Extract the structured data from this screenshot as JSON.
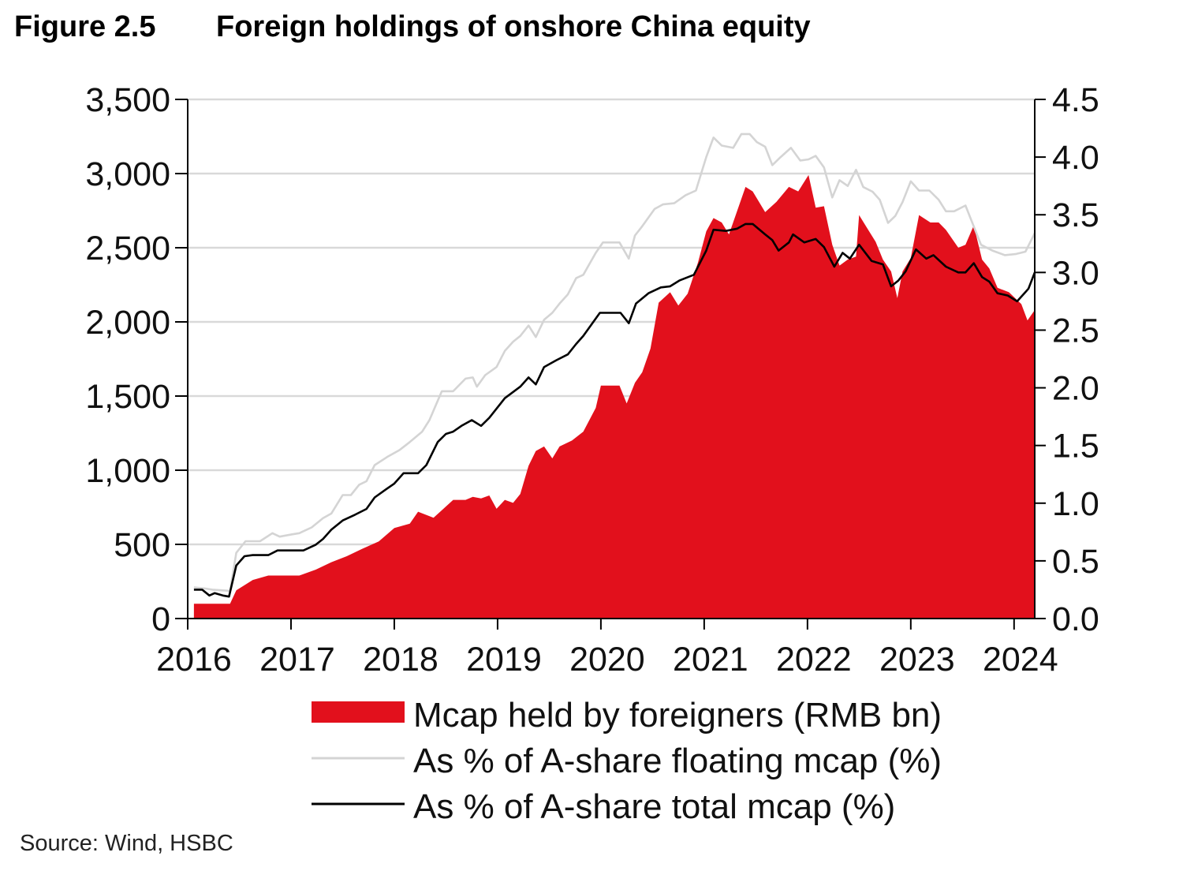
{
  "title": {
    "figure": "Figure 2.5",
    "text": "Foreign holdings of onshore China equity"
  },
  "source": "Source: Wind, HSBC",
  "chart_data": {
    "type": "area+line",
    "title": "Foreign holdings of onshore China equity",
    "xlim": [
      2016,
      2024.2
    ],
    "x_ticks": [
      "2016",
      "2017",
      "2018",
      "2019",
      "2020",
      "2021",
      "2022",
      "2023",
      "2024"
    ],
    "y_left": {
      "lim": [
        0,
        3500
      ],
      "ticks": [
        "0",
        "500",
        "1,000",
        "1,500",
        "2,000",
        "2,500",
        "3,000",
        "3,500"
      ],
      "tick_values": [
        0,
        500,
        1000,
        1500,
        2000,
        2500,
        3000,
        3500
      ]
    },
    "y_right": {
      "lim": [
        0,
        4.5
      ],
      "ticks": [
        "0.0",
        "0.5",
        "1.0",
        "1.5",
        "2.0",
        "2.5",
        "3.0",
        "3.5",
        "4.0",
        "4.5"
      ],
      "tick_values": [
        0,
        0.5,
        1,
        1.5,
        2,
        2.5,
        3,
        3.5,
        4,
        4.5
      ]
    },
    "grid": "horizontal",
    "legend_position": "bottom",
    "colors": {
      "mcap": "#e2101c",
      "floating": "#d4d4d4",
      "total": "#000000",
      "grid": "#d9d9d9"
    },
    "series": [
      {
        "name": "Mcap held by foreigners (RMB bn)",
        "axis": "left",
        "kind": "area",
        "points": [
          [
            2016.06,
            100
          ],
          [
            2016.41,
            100
          ],
          [
            2016.47,
            190
          ],
          [
            2016.63,
            260
          ],
          [
            2016.78,
            290
          ],
          [
            2017.08,
            290
          ],
          [
            2017.24,
            330
          ],
          [
            2017.39,
            380
          ],
          [
            2017.54,
            420
          ],
          [
            2017.69,
            470
          ],
          [
            2017.85,
            520
          ],
          [
            2018.0,
            610
          ],
          [
            2018.15,
            640
          ],
          [
            2018.23,
            720
          ],
          [
            2018.38,
            680
          ],
          [
            2018.46,
            730
          ],
          [
            2018.57,
            800
          ],
          [
            2018.69,
            800
          ],
          [
            2018.76,
            820
          ],
          [
            2018.84,
            810
          ],
          [
            2018.92,
            830
          ],
          [
            2018.99,
            740
          ],
          [
            2019.07,
            800
          ],
          [
            2019.15,
            780
          ],
          [
            2019.22,
            840
          ],
          [
            2019.3,
            1030
          ],
          [
            2019.37,
            1130
          ],
          [
            2019.45,
            1160
          ],
          [
            2019.53,
            1080
          ],
          [
            2019.6,
            1160
          ],
          [
            2019.72,
            1200
          ],
          [
            2019.83,
            1260
          ],
          [
            2019.95,
            1420
          ],
          [
            2020.0,
            1570
          ],
          [
            2020.18,
            1570
          ],
          [
            2020.25,
            1450
          ],
          [
            2020.33,
            1590
          ],
          [
            2020.4,
            1660
          ],
          [
            2020.48,
            1820
          ],
          [
            2020.56,
            2130
          ],
          [
            2020.67,
            2200
          ],
          [
            2020.75,
            2110
          ],
          [
            2020.84,
            2190
          ],
          [
            2020.94,
            2400
          ],
          [
            2021.02,
            2610
          ],
          [
            2021.09,
            2700
          ],
          [
            2021.17,
            2670
          ],
          [
            2021.24,
            2590
          ],
          [
            2021.32,
            2750
          ],
          [
            2021.4,
            2910
          ],
          [
            2021.47,
            2880
          ],
          [
            2021.59,
            2740
          ],
          [
            2021.7,
            2810
          ],
          [
            2021.82,
            2910
          ],
          [
            2021.91,
            2880
          ],
          [
            2022.01,
            2990
          ],
          [
            2022.08,
            2770
          ],
          [
            2022.16,
            2780
          ],
          [
            2022.24,
            2520
          ],
          [
            2022.31,
            2380
          ],
          [
            2022.39,
            2420
          ],
          [
            2022.47,
            2440
          ],
          [
            2022.5,
            2720
          ],
          [
            2022.58,
            2630
          ],
          [
            2022.66,
            2540
          ],
          [
            2022.73,
            2420
          ],
          [
            2022.81,
            2340
          ],
          [
            2022.87,
            2160
          ],
          [
            2022.92,
            2340
          ],
          [
            2023.0,
            2430
          ],
          [
            2023.08,
            2720
          ],
          [
            2023.19,
            2670
          ],
          [
            2023.27,
            2670
          ],
          [
            2023.34,
            2620
          ],
          [
            2023.46,
            2500
          ],
          [
            2023.53,
            2520
          ],
          [
            2023.61,
            2650
          ],
          [
            2023.69,
            2420
          ],
          [
            2023.76,
            2360
          ],
          [
            2023.84,
            2230
          ],
          [
            2023.95,
            2200
          ],
          [
            2024.07,
            2120
          ],
          [
            2024.13,
            2010
          ],
          [
            2024.2,
            2080
          ]
        ]
      },
      {
        "name": "As % of A-share floating mcap (%)",
        "axis": "right",
        "kind": "line",
        "points": [
          [
            2016.06,
            0.27
          ],
          [
            2016.17,
            0.26
          ],
          [
            2016.24,
            0.25
          ],
          [
            2016.41,
            0.24
          ],
          [
            2016.47,
            0.57
          ],
          [
            2016.56,
            0.67
          ],
          [
            2016.7,
            0.67
          ],
          [
            2016.82,
            0.74
          ],
          [
            2016.89,
            0.71
          ],
          [
            2017.01,
            0.73
          ],
          [
            2017.08,
            0.74
          ],
          [
            2017.2,
            0.79
          ],
          [
            2017.31,
            0.87
          ],
          [
            2017.39,
            0.91
          ],
          [
            2017.5,
            1.07
          ],
          [
            2017.58,
            1.07
          ],
          [
            2017.66,
            1.16
          ],
          [
            2017.73,
            1.19
          ],
          [
            2017.81,
            1.33
          ],
          [
            2017.93,
            1.4
          ],
          [
            2018.05,
            1.46
          ],
          [
            2018.15,
            1.53
          ],
          [
            2018.27,
            1.62
          ],
          [
            2018.34,
            1.72
          ],
          [
            2018.46,
            1.97
          ],
          [
            2018.57,
            1.97
          ],
          [
            2018.69,
            2.08
          ],
          [
            2018.76,
            2.09
          ],
          [
            2018.8,
            2.01
          ],
          [
            2018.88,
            2.11
          ],
          [
            2018.99,
            2.18
          ],
          [
            2019.07,
            2.32
          ],
          [
            2019.15,
            2.4
          ],
          [
            2019.22,
            2.45
          ],
          [
            2019.3,
            2.54
          ],
          [
            2019.37,
            2.44
          ],
          [
            2019.45,
            2.59
          ],
          [
            2019.53,
            2.65
          ],
          [
            2019.6,
            2.73
          ],
          [
            2019.68,
            2.81
          ],
          [
            2019.76,
            2.95
          ],
          [
            2019.83,
            2.98
          ],
          [
            2019.95,
            3.17
          ],
          [
            2020.02,
            3.26
          ],
          [
            2020.18,
            3.26
          ],
          [
            2020.27,
            3.12
          ],
          [
            2020.33,
            3.32
          ],
          [
            2020.4,
            3.4
          ],
          [
            2020.52,
            3.55
          ],
          [
            2020.6,
            3.59
          ],
          [
            2020.71,
            3.6
          ],
          [
            2020.82,
            3.67
          ],
          [
            2020.92,
            3.71
          ],
          [
            2021.02,
            4.0
          ],
          [
            2021.09,
            4.17
          ],
          [
            2021.17,
            4.1
          ],
          [
            2021.28,
            4.08
          ],
          [
            2021.36,
            4.2
          ],
          [
            2021.44,
            4.2
          ],
          [
            2021.51,
            4.13
          ],
          [
            2021.59,
            4.09
          ],
          [
            2021.66,
            3.93
          ],
          [
            2021.74,
            4.0
          ],
          [
            2021.84,
            4.08
          ],
          [
            2021.93,
            3.97
          ],
          [
            2022.01,
            3.98
          ],
          [
            2022.08,
            4.01
          ],
          [
            2022.16,
            3.91
          ],
          [
            2022.24,
            3.65
          ],
          [
            2022.31,
            3.8
          ],
          [
            2022.39,
            3.75
          ],
          [
            2022.47,
            3.89
          ],
          [
            2022.54,
            3.74
          ],
          [
            2022.63,
            3.7
          ],
          [
            2022.7,
            3.63
          ],
          [
            2022.78,
            3.43
          ],
          [
            2022.85,
            3.49
          ],
          [
            2022.92,
            3.61
          ],
          [
            2023.0,
            3.79
          ],
          [
            2023.08,
            3.71
          ],
          [
            2023.18,
            3.71
          ],
          [
            2023.27,
            3.63
          ],
          [
            2023.34,
            3.53
          ],
          [
            2023.42,
            3.53
          ],
          [
            2023.53,
            3.58
          ],
          [
            2023.68,
            3.24
          ],
          [
            2023.79,
            3.19
          ],
          [
            2023.91,
            3.15
          ],
          [
            2024.02,
            3.16
          ],
          [
            2024.11,
            3.18
          ],
          [
            2024.2,
            3.34
          ]
        ]
      },
      {
        "name": "As % of A-share total mcap (%)",
        "axis": "right",
        "kind": "line",
        "points": [
          [
            2016.06,
            0.25
          ],
          [
            2016.14,
            0.25
          ],
          [
            2016.21,
            0.2
          ],
          [
            2016.26,
            0.22
          ],
          [
            2016.34,
            0.2
          ],
          [
            2016.4,
            0.19
          ],
          [
            2016.47,
            0.46
          ],
          [
            2016.55,
            0.54
          ],
          [
            2016.63,
            0.55
          ],
          [
            2016.78,
            0.55
          ],
          [
            2016.87,
            0.59
          ],
          [
            2017.12,
            0.59
          ],
          [
            2017.24,
            0.64
          ],
          [
            2017.31,
            0.69
          ],
          [
            2017.39,
            0.77
          ],
          [
            2017.5,
            0.85
          ],
          [
            2017.62,
            0.9
          ],
          [
            2017.73,
            0.95
          ],
          [
            2017.81,
            1.05
          ],
          [
            2017.92,
            1.12
          ],
          [
            2018.0,
            1.17
          ],
          [
            2018.09,
            1.26
          ],
          [
            2018.23,
            1.26
          ],
          [
            2018.31,
            1.33
          ],
          [
            2018.42,
            1.53
          ],
          [
            2018.5,
            1.6
          ],
          [
            2018.57,
            1.62
          ],
          [
            2018.65,
            1.67
          ],
          [
            2018.75,
            1.72
          ],
          [
            2018.84,
            1.67
          ],
          [
            2018.92,
            1.74
          ],
          [
            2019.07,
            1.91
          ],
          [
            2019.22,
            2.01
          ],
          [
            2019.3,
            2.09
          ],
          [
            2019.37,
            2.03
          ],
          [
            2019.45,
            2.18
          ],
          [
            2019.57,
            2.24
          ],
          [
            2019.68,
            2.29
          ],
          [
            2019.76,
            2.38
          ],
          [
            2019.83,
            2.45
          ],
          [
            2019.99,
            2.65
          ],
          [
            2020.19,
            2.65
          ],
          [
            2020.27,
            2.56
          ],
          [
            2020.34,
            2.73
          ],
          [
            2020.46,
            2.82
          ],
          [
            2020.58,
            2.87
          ],
          [
            2020.67,
            2.88
          ],
          [
            2020.76,
            2.93
          ],
          [
            2020.9,
            2.98
          ],
          [
            2021.02,
            3.19
          ],
          [
            2021.09,
            3.37
          ],
          [
            2021.21,
            3.36
          ],
          [
            2021.32,
            3.38
          ],
          [
            2021.4,
            3.42
          ],
          [
            2021.47,
            3.42
          ],
          [
            2021.59,
            3.33
          ],
          [
            2021.66,
            3.28
          ],
          [
            2021.72,
            3.19
          ],
          [
            2021.82,
            3.26
          ],
          [
            2021.86,
            3.33
          ],
          [
            2021.97,
            3.26
          ],
          [
            2022.08,
            3.29
          ],
          [
            2022.16,
            3.22
          ],
          [
            2022.26,
            3.05
          ],
          [
            2022.34,
            3.17
          ],
          [
            2022.41,
            3.12
          ],
          [
            2022.5,
            3.24
          ],
          [
            2022.62,
            3.1
          ],
          [
            2022.73,
            3.07
          ],
          [
            2022.81,
            2.88
          ],
          [
            2022.88,
            2.93
          ],
          [
            2022.95,
            3.01
          ],
          [
            2023.05,
            3.2
          ],
          [
            2023.15,
            3.12
          ],
          [
            2023.22,
            3.15
          ],
          [
            2023.34,
            3.05
          ],
          [
            2023.46,
            3.0
          ],
          [
            2023.53,
            3.0
          ],
          [
            2023.61,
            3.08
          ],
          [
            2023.69,
            2.96
          ],
          [
            2023.76,
            2.92
          ],
          [
            2023.84,
            2.82
          ],
          [
            2023.94,
            2.8
          ],
          [
            2024.03,
            2.75
          ],
          [
            2024.11,
            2.83
          ],
          [
            2024.14,
            2.86
          ],
          [
            2024.2,
            3.0
          ]
        ]
      }
    ]
  }
}
